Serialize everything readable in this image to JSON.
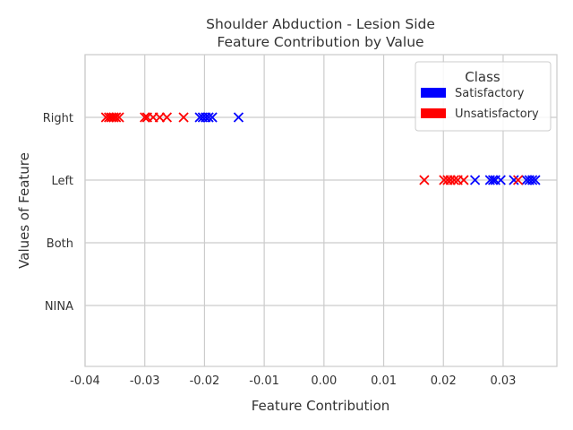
{
  "chart_data": {
    "type": "scatter",
    "title_lines": [
      "Shoulder Abduction - Lesion Side",
      "Feature Contribution by Value"
    ],
    "xlabel": "Feature Contribution",
    "ylabel": "Values of Feature",
    "xlim": [
      -0.04,
      0.039
    ],
    "xticks": [
      -0.04,
      -0.03,
      -0.02,
      -0.01,
      0.0,
      0.01,
      0.02,
      0.03
    ],
    "xtick_labels": [
      "-0.04",
      "-0.03",
      "-0.02",
      "-0.01",
      "0.00",
      "0.01",
      "0.02",
      "0.03"
    ],
    "categories": [
      "Right",
      "Left",
      "Both",
      "NINA"
    ],
    "grid": true,
    "marker": "x",
    "legend": {
      "title": "Class",
      "placement": "top-right",
      "entries": [
        {
          "label": "Satisfactory",
          "color": "#0000ff"
        },
        {
          "label": "Unsatisfactory",
          "color": "#ff0000"
        }
      ]
    },
    "series": [
      {
        "name": "Satisfactory",
        "color": "#0000ff",
        "points": [
          {
            "y": "Right",
            "x": -0.0208
          },
          {
            "y": "Right",
            "x": -0.0203
          },
          {
            "y": "Right",
            "x": -0.0198
          },
          {
            "y": "Right",
            "x": -0.0193
          },
          {
            "y": "Right",
            "x": -0.0187
          },
          {
            "y": "Right",
            "x": -0.0143
          },
          {
            "y": "Left",
            "x": 0.0253
          },
          {
            "y": "Left",
            "x": 0.0278
          },
          {
            "y": "Left",
            "x": 0.0283
          },
          {
            "y": "Left",
            "x": 0.0287
          },
          {
            "y": "Left",
            "x": 0.0296
          },
          {
            "y": "Left",
            "x": 0.0318
          },
          {
            "y": "Left",
            "x": 0.0339
          },
          {
            "y": "Left",
            "x": 0.0344
          },
          {
            "y": "Left",
            "x": 0.0349
          },
          {
            "y": "Left",
            "x": 0.0354
          }
        ]
      },
      {
        "name": "Unsatisfactory",
        "color": "#ff0000",
        "points": [
          {
            "y": "Right",
            "x": -0.0365
          },
          {
            "y": "Right",
            "x": -0.036
          },
          {
            "y": "Right",
            "x": -0.0356
          },
          {
            "y": "Right",
            "x": -0.0352
          },
          {
            "y": "Right",
            "x": -0.0348
          },
          {
            "y": "Right",
            "x": -0.0343
          },
          {
            "y": "Right",
            "x": -0.03
          },
          {
            "y": "Right",
            "x": -0.0296
          },
          {
            "y": "Right",
            "x": -0.0286
          },
          {
            "y": "Right",
            "x": -0.0275
          },
          {
            "y": "Right",
            "x": -0.0263
          },
          {
            "y": "Right",
            "x": -0.0235
          },
          {
            "y": "Left",
            "x": 0.0168
          },
          {
            "y": "Left",
            "x": 0.0201
          },
          {
            "y": "Left",
            "x": 0.0207
          },
          {
            "y": "Left",
            "x": 0.0212
          },
          {
            "y": "Left",
            "x": 0.0218
          },
          {
            "y": "Left",
            "x": 0.0224
          },
          {
            "y": "Left",
            "x": 0.0234
          },
          {
            "y": "Left",
            "x": 0.0325
          }
        ]
      }
    ]
  }
}
